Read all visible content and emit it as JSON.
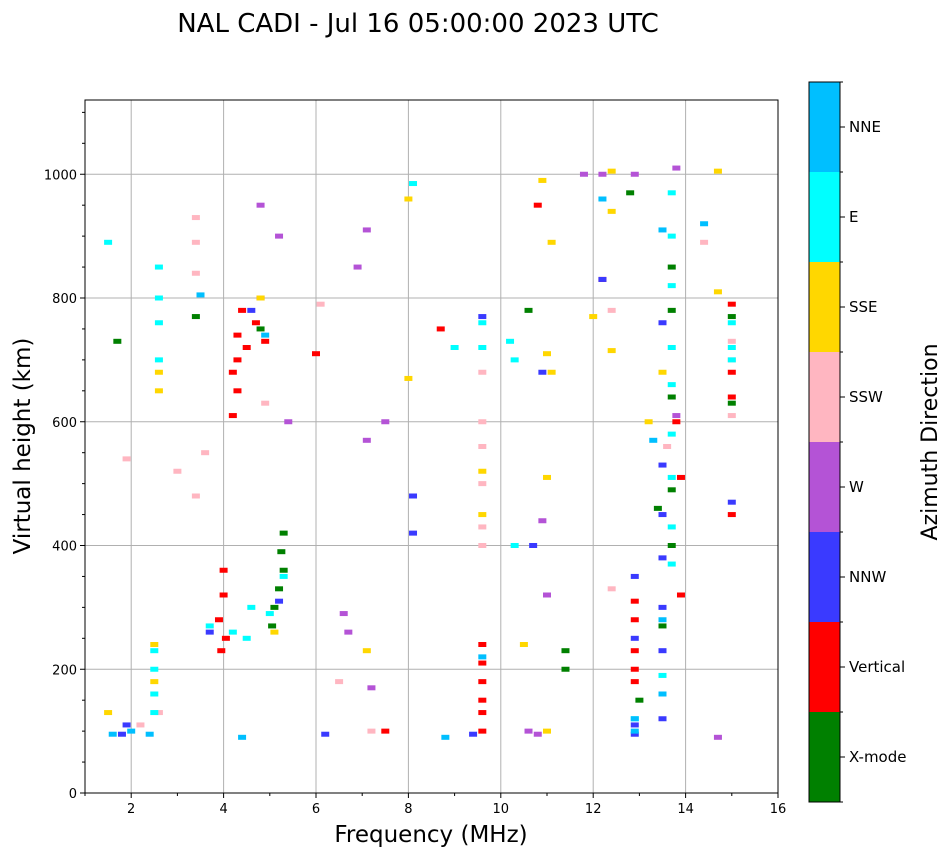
{
  "chart_data": {
    "type": "scatter",
    "title": "NAL CADI - Jul 16 05:00:00 2023 UTC",
    "xlabel": "Frequency (MHz)",
    "ylabel": "Virtual height (km)",
    "xlim": [
      1,
      16
    ],
    "ylim": [
      0,
      1120
    ],
    "xticks": [
      2,
      4,
      6,
      8,
      10,
      12,
      14,
      16
    ],
    "yticks": [
      0,
      200,
      400,
      600,
      800,
      1000
    ],
    "grid": true,
    "colorbar": {
      "label": "Azimuth Direction",
      "categories": [
        {
          "name": "X-mode",
          "color": "#008000"
        },
        {
          "name": "Vertical",
          "color": "#ff0000"
        },
        {
          "name": "NNW",
          "color": "#3a3aff"
        },
        {
          "name": "W",
          "color": "#b453d6"
        },
        {
          "name": "SSW",
          "color": "#ffb6c1"
        },
        {
          "name": "SSE",
          "color": "#ffd700"
        },
        {
          "name": "E",
          "color": "#00ffff"
        },
        {
          "name": "NNE",
          "color": "#00bfff"
        }
      ]
    },
    "series": [
      {
        "name": "X-mode",
        "points": [
          [
            5.3,
            420
          ],
          [
            5.25,
            390
          ],
          [
            5.3,
            360
          ],
          [
            5.2,
            330
          ],
          [
            5.1,
            300
          ],
          [
            5.05,
            270
          ],
          [
            11.4,
            200
          ],
          [
            13.0,
            150
          ],
          [
            13.5,
            270
          ],
          [
            13.7,
            850
          ],
          [
            13.7,
            780
          ],
          [
            13.7,
            640
          ],
          [
            13.7,
            490
          ],
          [
            13.7,
            400
          ],
          [
            10.6,
            780
          ],
          [
            12.8,
            970
          ],
          [
            15.0,
            770
          ],
          [
            15.0,
            630
          ],
          [
            4.8,
            750
          ],
          [
            3.4,
            770
          ],
          [
            1.7,
            730
          ],
          [
            11.4,
            230
          ],
          [
            13.4,
            460
          ]
        ]
      },
      {
        "name": "Vertical",
        "points": [
          [
            4.0,
            360
          ],
          [
            4.0,
            320
          ],
          [
            3.9,
            280
          ],
          [
            4.05,
            250
          ],
          [
            3.95,
            230
          ],
          [
            4.3,
            740
          ],
          [
            4.3,
            700
          ],
          [
            4.4,
            780
          ],
          [
            4.2,
            680
          ],
          [
            4.3,
            650
          ],
          [
            4.2,
            610
          ],
          [
            4.5,
            720
          ],
          [
            4.7,
            760
          ],
          [
            4.8,
            800
          ],
          [
            4.9,
            730
          ],
          [
            9.6,
            240
          ],
          [
            9.6,
            210
          ],
          [
            9.6,
            180
          ],
          [
            9.6,
            150
          ],
          [
            9.6,
            130
          ],
          [
            9.6,
            100
          ],
          [
            12.9,
            310
          ],
          [
            12.9,
            280
          ],
          [
            12.9,
            230
          ],
          [
            12.9,
            200
          ],
          [
            12.9,
            180
          ],
          [
            15.0,
            790
          ],
          [
            15.0,
            680
          ],
          [
            15.0,
            640
          ],
          [
            15.0,
            450
          ],
          [
            13.9,
            320
          ],
          [
            13.9,
            510
          ],
          [
            8.7,
            750
          ],
          [
            6.0,
            710
          ],
          [
            10.8,
            950
          ],
          [
            12.2,
            830
          ],
          [
            13.8,
            600
          ],
          [
            7.5,
            100
          ]
        ]
      },
      {
        "name": "NNW",
        "points": [
          [
            12.9,
            350
          ],
          [
            12.9,
            250
          ],
          [
            12.9,
            110
          ],
          [
            12.9,
            95
          ],
          [
            13.5,
            760
          ],
          [
            13.5,
            530
          ],
          [
            13.5,
            450
          ],
          [
            13.5,
            380
          ],
          [
            13.5,
            300
          ],
          [
            13.5,
            230
          ],
          [
            13.5,
            120
          ],
          [
            9.6,
            770
          ],
          [
            8.1,
            480
          ],
          [
            8.1,
            420
          ],
          [
            10.7,
            400
          ],
          [
            10.9,
            680
          ],
          [
            12.2,
            830
          ],
          [
            15.0,
            470
          ],
          [
            5.2,
            310
          ],
          [
            4.6,
            780
          ],
          [
            1.9,
            110
          ],
          [
            1.8,
            95
          ],
          [
            3.7,
            260
          ],
          [
            9.4,
            95
          ],
          [
            6.2,
            95
          ]
        ]
      },
      {
        "name": "W",
        "points": [
          [
            10.9,
            440
          ],
          [
            11.0,
            320
          ],
          [
            10.6,
            100
          ],
          [
            10.8,
            95
          ],
          [
            7.1,
            910
          ],
          [
            6.9,
            850
          ],
          [
            7.5,
            600
          ],
          [
            7.1,
            570
          ],
          [
            12.9,
            1000
          ],
          [
            13.8,
            1010
          ],
          [
            14.7,
            90
          ],
          [
            4.8,
            950
          ],
          [
            5.2,
            900
          ],
          [
            5.4,
            600
          ],
          [
            11.8,
            1000
          ],
          [
            6.7,
            260
          ],
          [
            7.2,
            170
          ],
          [
            12.2,
            1000
          ],
          [
            6.6,
            290
          ],
          [
            13.8,
            610
          ]
        ]
      },
      {
        "name": "SSW",
        "points": [
          [
            9.6,
            600
          ],
          [
            9.6,
            560
          ],
          [
            9.6,
            500
          ],
          [
            9.6,
            430
          ],
          [
            9.6,
            400
          ],
          [
            9.6,
            680
          ],
          [
            15.0,
            730
          ],
          [
            15.0,
            700
          ],
          [
            15.0,
            610
          ],
          [
            3.4,
            890
          ],
          [
            3.4,
            930
          ],
          [
            3.4,
            840
          ],
          [
            3.4,
            480
          ],
          [
            3.6,
            550
          ],
          [
            3.0,
            520
          ],
          [
            1.9,
            540
          ],
          [
            4.9,
            630
          ],
          [
            6.1,
            790
          ],
          [
            12.4,
            780
          ],
          [
            12.4,
            330
          ],
          [
            14.4,
            890
          ],
          [
            13.6,
            560
          ],
          [
            2.2,
            110
          ],
          [
            2.6,
            130
          ],
          [
            6.5,
            180
          ],
          [
            7.2,
            100
          ]
        ]
      },
      {
        "name": "SSE",
        "points": [
          [
            9.6,
            450
          ],
          [
            9.6,
            520
          ],
          [
            2.5,
            180
          ],
          [
            2.5,
            240
          ],
          [
            2.6,
            650
          ],
          [
            2.6,
            680
          ],
          [
            10.9,
            990
          ],
          [
            11.1,
            890
          ],
          [
            11.0,
            710
          ],
          [
            11.1,
            680
          ],
          [
            11.0,
            510
          ],
          [
            12.4,
            940
          ],
          [
            12.4,
            1005
          ],
          [
            12.4,
            715
          ],
          [
            13.2,
            600
          ],
          [
            14.7,
            1005
          ],
          [
            14.7,
            810
          ],
          [
            8.0,
            960
          ],
          [
            8.0,
            670
          ],
          [
            12.0,
            770
          ],
          [
            5.1,
            260
          ],
          [
            7.1,
            230
          ],
          [
            11.0,
            100
          ],
          [
            10.5,
            240
          ],
          [
            13.5,
            680
          ],
          [
            1.5,
            130
          ],
          [
            4.8,
            800
          ]
        ]
      },
      {
        "name": "E",
        "points": [
          [
            2.6,
            850
          ],
          [
            2.6,
            800
          ],
          [
            2.6,
            760
          ],
          [
            2.6,
            700
          ],
          [
            2.5,
            230
          ],
          [
            2.5,
            200
          ],
          [
            2.5,
            160
          ],
          [
            2.5,
            130
          ],
          [
            9.6,
            760
          ],
          [
            9.6,
            720
          ],
          [
            10.2,
            730
          ],
          [
            10.3,
            700
          ],
          [
            13.7,
            970
          ],
          [
            13.7,
            900
          ],
          [
            13.7,
            820
          ],
          [
            13.7,
            720
          ],
          [
            13.7,
            660
          ],
          [
            13.7,
            580
          ],
          [
            13.7,
            510
          ],
          [
            13.7,
            430
          ],
          [
            13.7,
            370
          ],
          [
            15.0,
            760
          ],
          [
            15.0,
            720
          ],
          [
            15.0,
            700
          ],
          [
            12.9,
            120
          ],
          [
            13.5,
            190
          ],
          [
            4.5,
            250
          ],
          [
            4.2,
            260
          ],
          [
            3.7,
            270
          ],
          [
            4.6,
            300
          ],
          [
            5.0,
            290
          ],
          [
            5.3,
            350
          ],
          [
            1.5,
            890
          ],
          [
            9.0,
            720
          ],
          [
            8.1,
            985
          ],
          [
            10.3,
            400
          ]
        ]
      },
      {
        "name": "NNE",
        "points": [
          [
            13.5,
            910
          ],
          [
            13.5,
            160
          ],
          [
            13.5,
            280
          ],
          [
            12.9,
            120
          ],
          [
            12.9,
            100
          ],
          [
            13.3,
            570
          ],
          [
            8.8,
            90
          ],
          [
            4.4,
            90
          ],
          [
            2.4,
            95
          ],
          [
            1.6,
            95
          ],
          [
            2.0,
            100
          ],
          [
            4.9,
            740
          ],
          [
            3.5,
            805
          ],
          [
            9.6,
            220
          ],
          [
            12.2,
            960
          ],
          [
            14.4,
            920
          ]
        ]
      }
    ]
  }
}
